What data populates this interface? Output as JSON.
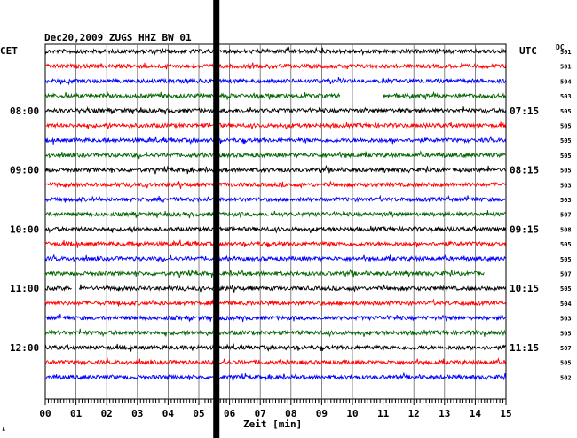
{
  "chart_data": {
    "type": "line",
    "title": "Dec20,2009  ZUGS HHZ BW 01",
    "left_label": "CET",
    "right_label": "UTC",
    "dc_header": "DC",
    "xlabel": "Zeit [min]",
    "x_ticks": [
      "00",
      "01",
      "02",
      "03",
      "04",
      "05",
      "06",
      "07",
      "08",
      "09",
      "10",
      "11",
      "12",
      "13",
      "14",
      "15"
    ],
    "xlim": [
      0,
      15
    ],
    "grid": true,
    "cet_labels": [
      {
        "row": 4,
        "text": "08:00"
      },
      {
        "row": 8,
        "text": "09:00"
      },
      {
        "row": 12,
        "text": "10:00"
      },
      {
        "row": 16,
        "text": "11:00"
      },
      {
        "row": 20,
        "text": "12:00"
      }
    ],
    "utc_labels": [
      {
        "row": 4,
        "text": "07:15"
      },
      {
        "row": 8,
        "text": "08:15"
      },
      {
        "row": 12,
        "text": "09:15"
      },
      {
        "row": 16,
        "text": "10:15"
      },
      {
        "row": 20,
        "text": "11:15"
      }
    ],
    "series_colors": [
      "#000000",
      "#ff0000",
      "#0000ff",
      "#006400"
    ],
    "dc_values": [
      "501",
      "501",
      "504",
      "503",
      "505",
      "505",
      "505",
      "505",
      "505",
      "503",
      "503",
      "507",
      "508",
      "505",
      "505",
      "507",
      "505",
      "504",
      "503",
      "505",
      "507",
      "505",
      "502"
    ],
    "vertical_bar_at_minute": 5.57,
    "data_gaps": [
      {
        "row": 3,
        "from": 9.6,
        "to": 11.0
      },
      {
        "row": 15,
        "from": 14.3,
        "to": 15.0
      },
      {
        "row": 16,
        "from": 0.85,
        "to": 1.1
      }
    ]
  },
  "corner_mark": "∧"
}
